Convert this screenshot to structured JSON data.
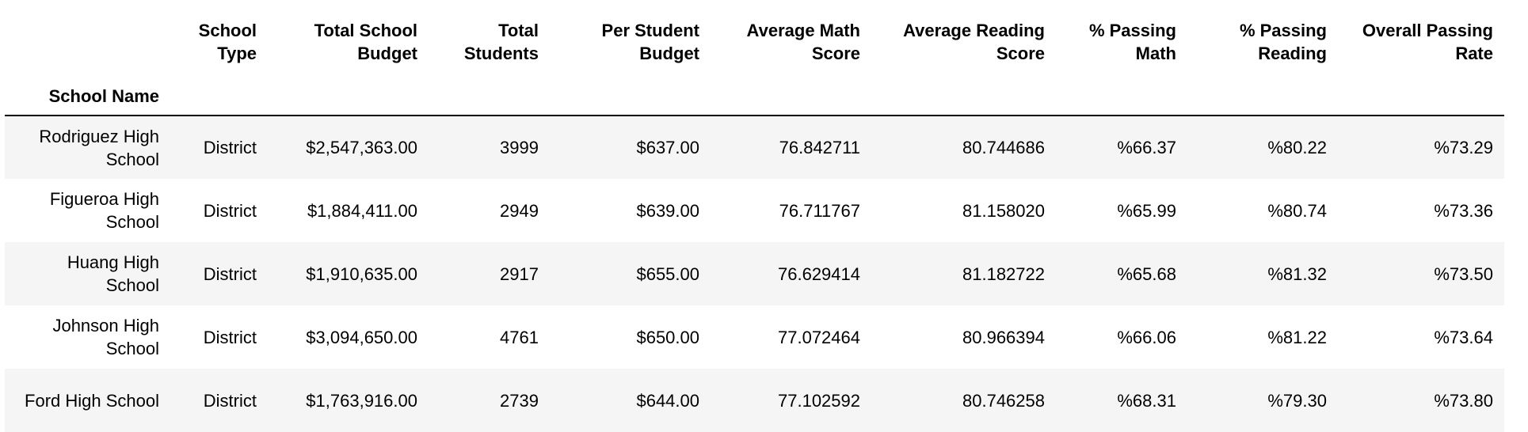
{
  "table": {
    "columns": [
      "School Type",
      "Total School Budget",
      "Total Students",
      "Per Student Budget",
      "Average Math Score",
      "Average Reading Score",
      "% Passing Math",
      "% Passing Reading",
      "Overall Passing Rate"
    ],
    "index_name": "School Name",
    "rows": [
      {
        "school": "Rodriguez High School",
        "values": [
          "District",
          "$2,547,363.00",
          "3999",
          "$637.00",
          "76.842711",
          "80.744686",
          "%66.37",
          "%80.22",
          "%73.29"
        ]
      },
      {
        "school": "Figueroa High School",
        "values": [
          "District",
          "$1,884,411.00",
          "2949",
          "$639.00",
          "76.711767",
          "81.158020",
          "%65.99",
          "%80.74",
          "%73.36"
        ]
      },
      {
        "school": "Huang High School",
        "values": [
          "District",
          "$1,910,635.00",
          "2917",
          "$655.00",
          "76.629414",
          "81.182722",
          "%65.68",
          "%81.32",
          "%73.50"
        ]
      },
      {
        "school": "Johnson High School",
        "values": [
          "District",
          "$3,094,650.00",
          "4761",
          "$650.00",
          "77.072464",
          "80.966394",
          "%66.06",
          "%81.22",
          "%73.64"
        ]
      },
      {
        "school": "Ford High School",
        "values": [
          "District",
          "$1,763,916.00",
          "2739",
          "$644.00",
          "77.102592",
          "80.746258",
          "%68.31",
          "%79.30",
          "%73.80"
        ]
      }
    ]
  },
  "colors": {
    "stripe": "#f5f5f5",
    "header_rule": "#000000",
    "text": "#000000"
  }
}
